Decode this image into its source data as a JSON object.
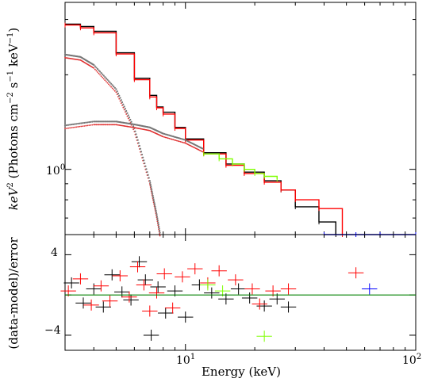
{
  "chart_data": [
    {
      "type": "line",
      "panel": "spectrum",
      "xscale": "log",
      "yscale": "log",
      "xlim": [
        3,
        100
      ],
      "ylabel_html": "keV² (Photons cm⁻² s⁻¹ keV⁻¹)",
      "ylabel_parts": [
        "keV",
        "2",
        " (Photons cm",
        "−2",
        " s",
        "−1",
        " keV",
        "−1",
        ")"
      ],
      "ytick_labels": [
        "10",
        "0"
      ],
      "series": [
        {
          "color": "#000000",
          "x": [
            3.0,
            3.5,
            4.0,
            5.0,
            6.0,
            7.0,
            7.5,
            8.0,
            9.0,
            10.0,
            12.0,
            15.0,
            18.0,
            22.0,
            26.0,
            30.0,
            38.0,
            45.0
          ],
          "y": [
            2.9,
            2.85,
            2.75,
            2.35,
            1.95,
            1.72,
            1.58,
            1.52,
            1.36,
            1.25,
            1.13,
            1.04,
            0.98,
            0.92,
            0.86,
            0.76,
            0.68,
            0.62
          ]
        },
        {
          "color": "#ff0000",
          "x": [
            3.0,
            3.5,
            4.0,
            5.0,
            6.0,
            7.0,
            7.5,
            8.0,
            9.0,
            10.0,
            12.0,
            15.0,
            18.0,
            22.0,
            26.0,
            30.0,
            38.0,
            48.0
          ],
          "y": [
            2.88,
            2.82,
            2.72,
            2.33,
            1.93,
            1.7,
            1.57,
            1.5,
            1.35,
            1.24,
            1.12,
            1.03,
            0.97,
            0.91,
            0.86,
            0.8,
            0.75,
            0.62
          ]
        },
        {
          "color": "#7fff00",
          "x": [
            12.0,
            14.0,
            16.0,
            18.0,
            20.0,
            22.0,
            25.0
          ],
          "y": [
            1.12,
            1.08,
            1.04,
            1.0,
            0.97,
            0.95,
            0.93
          ]
        },
        {
          "color": "#0000ff",
          "x": [
            40.0,
            55.0,
            70.0,
            100.0
          ],
          "y": [
            0.62,
            0.62,
            0.62,
            0.62
          ]
        },
        {
          "color": "#888888",
          "x": [
            3.0,
            3.5,
            4.0,
            5.0,
            6.0,
            7.0,
            7.5,
            8.0
          ],
          "y": [
            2.32,
            2.28,
            2.15,
            1.8,
            1.35,
            0.92,
            0.72,
            0.55
          ]
        },
        {
          "color": "#888888",
          "x": [
            3.0,
            4.0,
            5.0,
            6.0,
            7.0,
            8.0,
            10.0,
            12.0
          ],
          "y": [
            1.38,
            1.42,
            1.42,
            1.39,
            1.36,
            1.3,
            1.24,
            1.16
          ]
        }
      ]
    },
    {
      "type": "scatter",
      "panel": "residuals",
      "xscale": "log",
      "xlim": [
        3,
        100
      ],
      "ylim": [
        -5.5,
        6
      ],
      "xlabel": "Energy (keV)",
      "ylabel": "(data-model)/error",
      "xtick_labels": [
        {
          "base": "10",
          "exp": "1"
        },
        {
          "base": "10",
          "exp": "2"
        }
      ],
      "ytick_labels": [
        "4",
        "−4"
      ],
      "series": [
        {
          "color": "#000000",
          "x": [
            3.2,
            3.6,
            4.0,
            4.4,
            4.8,
            5.3,
            5.8,
            6.3,
            6.7,
            7.1,
            7.6,
            8.2,
            9.0,
            10.0,
            11.5,
            13.0,
            15.0,
            17.0,
            19.0,
            22.0,
            25.0,
            28.0
          ],
          "y": [
            1.2,
            -0.8,
            0.6,
            -1.2,
            2.0,
            0.3,
            -0.5,
            3.3,
            1.5,
            -4.0,
            0.8,
            -1.8,
            0.4,
            -2.2,
            1.0,
            0.2,
            -0.4,
            0.6,
            -0.3,
            -1.1,
            -0.4,
            -1.2
          ]
        },
        {
          "color": "#ff0000",
          "x": [
            3.1,
            3.5,
            3.9,
            4.3,
            4.7,
            5.2,
            5.7,
            6.2,
            6.6,
            7.0,
            7.5,
            8.1,
            8.8,
            9.7,
            11.0,
            12.5,
            14.0,
            16.5,
            19.5,
            21.0,
            24.0,
            28.0,
            55.0
          ],
          "y": [
            0.4,
            1.6,
            -1.0,
            0.9,
            -0.6,
            1.9,
            -0.2,
            2.8,
            1.0,
            -1.6,
            0.2,
            2.1,
            -1.3,
            1.8,
            2.6,
            1.2,
            2.4,
            1.5,
            0.6,
            -0.9,
            0.4,
            0.6,
            2.2
          ]
        },
        {
          "color": "#7fff00",
          "x": [
            12.5,
            14.5,
            22.0
          ],
          "y": [
            1.0,
            0.4,
            -4.1
          ]
        },
        {
          "color": "#0000ff",
          "x": [
            63.0
          ],
          "y": [
            0.6
          ]
        },
        {
          "color": "#008000",
          "x": [
            3.0,
            100.0
          ],
          "y": [
            0.0,
            0.0
          ]
        }
      ]
    }
  ]
}
